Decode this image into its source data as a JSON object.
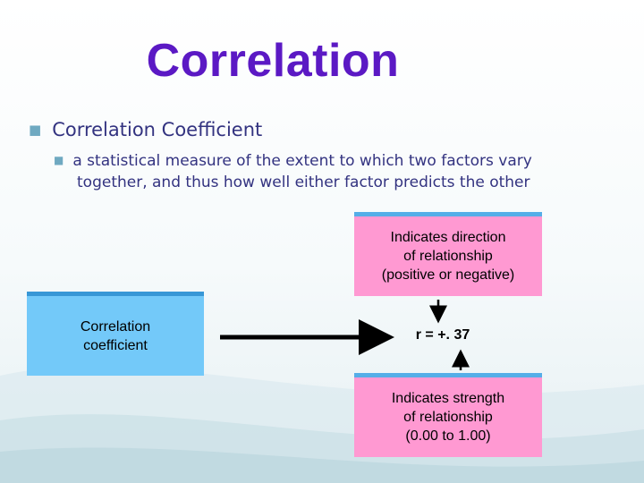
{
  "slide": {
    "title": "Correlation",
    "bullet_main": "Correlation Coefficient",
    "bullet_sub_line1": "a statistical measure of the extent to which two factors vary",
    "bullet_sub_line2": "together, and thus how well either factor predicts the other"
  },
  "diagram": {
    "box_direction": "Indicates direction\nof relationship\n(positive or negative)",
    "box_coefficient": "Correlation\ncoefficient",
    "box_strength": "Indicates strength\nof relationship\n(0.00 to 1.00)",
    "r_value": "r = +. 37"
  },
  "colors": {
    "title": "#5b19c4",
    "bullet_text": "#333380",
    "bullet_marker": "#6fa9c1",
    "pink_box": "#ff99d2",
    "blue_box": "#73c9f9"
  }
}
